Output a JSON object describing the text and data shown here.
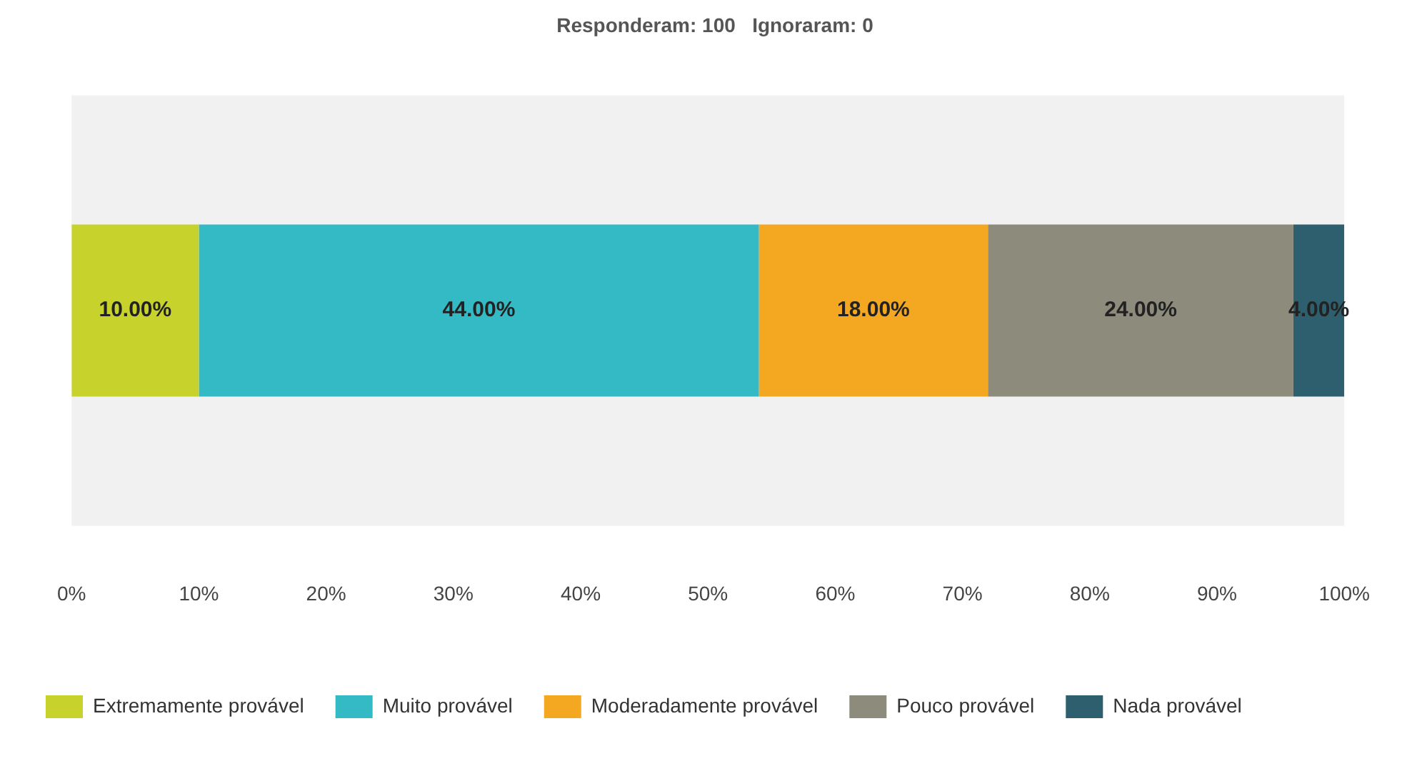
{
  "chart_data": {
    "type": "bar",
    "orientation": "horizontal",
    "stacked": true,
    "title": "Responderam: 100   Ignoraram: 0",
    "categories": [
      null
    ],
    "series": [
      {
        "name": "Extremamente provável",
        "color": "#c8d22c",
        "values": [
          10
        ],
        "value_labels": [
          "10.00%"
        ]
      },
      {
        "name": "Muito provável",
        "color": "#34bac5",
        "values": [
          44
        ],
        "value_labels": [
          "44.00%"
        ]
      },
      {
        "name": "Moderadamente provável",
        "color": "#f4a821",
        "values": [
          18
        ],
        "value_labels": [
          "18.00%"
        ]
      },
      {
        "name": "Pouco provável",
        "color": "#8c8b7c",
        "values": [
          24
        ],
        "value_labels": [
          "24.00%"
        ]
      },
      {
        "name": "Nada provável",
        "color": "#2e5f6e",
        "values": [
          4
        ],
        "value_labels": [
          "4.00%"
        ]
      }
    ],
    "xlim": [
      0,
      100
    ],
    "xticks": [
      {
        "value": 0,
        "label": "0%"
      },
      {
        "value": 10,
        "label": "10%"
      },
      {
        "value": 20,
        "label": "20%"
      },
      {
        "value": 30,
        "label": "30%"
      },
      {
        "value": 40,
        "label": "40%"
      },
      {
        "value": 50,
        "label": "50%"
      },
      {
        "value": 60,
        "label": "60%"
      },
      {
        "value": 70,
        "label": "70%"
      },
      {
        "value": 80,
        "label": "80%"
      },
      {
        "value": 90,
        "label": "90%"
      },
      {
        "value": 100,
        "label": "100%"
      }
    ],
    "grid": false,
    "legend": "bottom"
  }
}
